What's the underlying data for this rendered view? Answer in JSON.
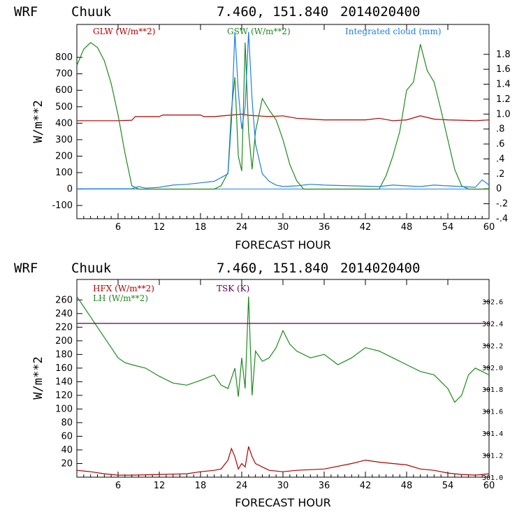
{
  "colors": {
    "glw": "#b00000",
    "gsw": "#1e8a1e",
    "cloud": "#1f7fe0",
    "hfx": "#b00000",
    "lh": "#1e8a1e",
    "tsk": "#5a0050",
    "axis": "#000000"
  },
  "chart_data": [
    {
      "type": "line",
      "header": {
        "model": "WRF",
        "station": "Chuuk",
        "coords": "7.460, 151.840",
        "date": "2014020400"
      },
      "xlabel": "FORECAST HOUR",
      "ylabel": "W/m**2",
      "xlim": [
        0,
        60
      ],
      "ylim": [
        -180,
        1000
      ],
      "y2lim": [
        -0.4,
        2.2
      ],
      "xticks": [
        6,
        12,
        18,
        24,
        30,
        36,
        42,
        48,
        54,
        60
      ],
      "yticks": [
        -100,
        0,
        100,
        200,
        300,
        400,
        500,
        600,
        700,
        800
      ],
      "y2ticks": [
        -0.4,
        -0.2,
        0,
        0.2,
        0.4,
        0.6,
        0.8,
        1.0,
        1.2,
        1.4,
        1.6,
        1.8
      ],
      "y2ticklabels": [
        "-.4",
        "-.2",
        "0",
        ".2",
        ".4",
        ".6",
        ".8",
        "1.0",
        "1.2",
        "1.4",
        "1.6",
        "1.8"
      ],
      "legend": {
        "glw": "GLW (W/m**2)",
        "gsw": "GSW (W/m**2)",
        "cloud": "Integrated cloud (mm)"
      },
      "series": [
        {
          "name": "GLW (W/m**2)",
          "axis": "left",
          "x": [
            0,
            6,
            8,
            8.5,
            12,
            12.5,
            18,
            18.5,
            20,
            24,
            25,
            28,
            30,
            32,
            34,
            36,
            42,
            44,
            46,
            48,
            50,
            52,
            54,
            56,
            58,
            60
          ],
          "y": [
            415,
            415,
            418,
            440,
            440,
            450,
            450,
            440,
            440,
            455,
            448,
            440,
            445,
            430,
            425,
            420,
            420,
            430,
            415,
            420,
            445,
            425,
            420,
            418,
            415,
            420
          ]
        },
        {
          "name": "GSW (W/m**2)",
          "axis": "left",
          "x": [
            0,
            1,
            2,
            3,
            4,
            5,
            6,
            7,
            8,
            9,
            20,
            21,
            22,
            22.5,
            23,
            23.5,
            24,
            24.5,
            25,
            25.5,
            26,
            27,
            28,
            29,
            30,
            31,
            32,
            33,
            44,
            45,
            46,
            47,
            48,
            49,
            50,
            51,
            52,
            53,
            54,
            55,
            56,
            57,
            60
          ],
          "y": [
            750,
            850,
            890,
            860,
            780,
            640,
            450,
            220,
            20,
            0,
            0,
            20,
            100,
            480,
            680,
            200,
            110,
            890,
            350,
            120,
            350,
            550,
            480,
            420,
            300,
            150,
            50,
            0,
            0,
            80,
            200,
            350,
            600,
            650,
            880,
            720,
            650,
            480,
            300,
            120,
            20,
            0,
            0
          ]
        },
        {
          "name": "Integrated cloud (mm)",
          "axis": "right",
          "x": [
            0,
            8,
            9,
            10,
            12,
            14,
            16,
            18,
            20,
            21,
            22,
            22.5,
            23,
            23.5,
            24,
            24.5,
            25,
            25.5,
            26,
            27,
            28,
            29,
            30,
            32,
            34,
            36,
            40,
            44,
            46,
            48,
            50,
            52,
            54,
            56,
            58,
            59,
            60
          ],
          "y": [
            0,
            0,
            0.03,
            0.01,
            0.02,
            0.05,
            0.06,
            0.08,
            0.1,
            0.15,
            0.2,
            0.9,
            2.1,
            1.3,
            0.8,
            1.1,
            2.1,
            1.2,
            0.6,
            0.2,
            0.1,
            0.05,
            0.03,
            0.04,
            0.06,
            0.05,
            0.04,
            0.03,
            0.05,
            0.04,
            0.03,
            0.05,
            0.04,
            0.03,
            0.02,
            0.12,
            0.05
          ]
        }
      ]
    },
    {
      "type": "line",
      "header": {
        "model": "WRF",
        "station": "Chuuk",
        "coords": "7.460, 151.840",
        "date": "2014020400"
      },
      "xlabel": "FORECAST HOUR",
      "ylabel": "W/m**2",
      "xlim": [
        0,
        60
      ],
      "ylim": [
        0,
        290
      ],
      "y2lim": [
        301.0,
        302.8
      ],
      "xticks": [
        6,
        12,
        18,
        24,
        30,
        36,
        42,
        48,
        54,
        60
      ],
      "yticks": [
        20,
        40,
        60,
        80,
        100,
        120,
        140,
        160,
        180,
        200,
        220,
        240,
        260
      ],
      "y2ticks": [
        301.0,
        301.2,
        301.4,
        301.6,
        301.8,
        302.0,
        302.2,
        302.4,
        302.6
      ],
      "y2ticklabels": [
        "301.0",
        "301.2",
        "301.4",
        "301.6",
        "301.8",
        "302.0",
        "302.2",
        "302.4",
        "302.6"
      ],
      "legend": {
        "hfx": "HFX (W/m**2)",
        "lh": "LH (W/m**2)",
        "tsk": "TSK (K)"
      },
      "series": [
        {
          "name": "HFX (W/m**2)",
          "axis": "left",
          "x": [
            0,
            2,
            4,
            6,
            8,
            12,
            16,
            18,
            20,
            21,
            22,
            22.5,
            23,
            23.5,
            24,
            24.5,
            25,
            25.5,
            26,
            28,
            30,
            32,
            36,
            40,
            42,
            44,
            46,
            48,
            50,
            52,
            54,
            56,
            58,
            60
          ],
          "y": [
            10,
            8,
            5,
            3,
            3,
            4,
            5,
            8,
            10,
            12,
            25,
            42,
            30,
            12,
            20,
            15,
            45,
            30,
            20,
            10,
            8,
            10,
            12,
            20,
            25,
            22,
            20,
            18,
            12,
            10,
            6,
            4,
            3,
            5
          ]
        },
        {
          "name": "LH (W/m**2)",
          "axis": "left",
          "x": [
            0,
            1,
            2,
            3,
            4,
            5,
            6,
            7,
            8,
            10,
            12,
            14,
            16,
            18,
            20,
            21,
            22,
            23,
            23.5,
            24,
            24.5,
            25,
            25.5,
            26,
            27,
            28,
            29,
            30,
            31,
            32,
            34,
            36,
            38,
            40,
            42,
            44,
            46,
            48,
            50,
            52,
            54,
            55,
            56,
            57,
            58,
            59,
            60
          ],
          "y": [
            265,
            250,
            235,
            220,
            205,
            190,
            175,
            168,
            165,
            160,
            148,
            138,
            135,
            142,
            150,
            135,
            130,
            160,
            118,
            175,
            130,
            265,
            120,
            185,
            170,
            175,
            190,
            215,
            195,
            185,
            175,
            180,
            165,
            175,
            190,
            185,
            175,
            165,
            155,
            150,
            130,
            110,
            120,
            150,
            160,
            155,
            150
          ]
        },
        {
          "name": "TSK (K)",
          "axis": "right",
          "x": [
            0,
            60
          ],
          "y": [
            302.4,
            302.4
          ]
        }
      ]
    }
  ]
}
